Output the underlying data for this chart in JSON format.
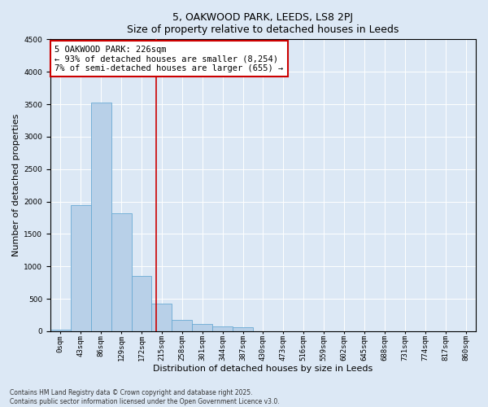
{
  "title_line1": "5, OAKWOOD PARK, LEEDS, LS8 2PJ",
  "title_line2": "Size of property relative to detached houses in Leeds",
  "xlabel": "Distribution of detached houses by size in Leeds",
  "ylabel": "Number of detached properties",
  "categories": [
    "0sqm",
    "43sqm",
    "86sqm",
    "129sqm",
    "172sqm",
    "215sqm",
    "258sqm",
    "301sqm",
    "344sqm",
    "387sqm",
    "430sqm",
    "473sqm",
    "516sqm",
    "559sqm",
    "602sqm",
    "645sqm",
    "688sqm",
    "731sqm",
    "774sqm",
    "817sqm",
    "860sqm"
  ],
  "values": [
    30,
    1950,
    3520,
    1820,
    850,
    430,
    170,
    110,
    80,
    65,
    0,
    0,
    0,
    0,
    0,
    0,
    0,
    0,
    0,
    0,
    0
  ],
  "bar_color": "#b8d0e8",
  "bar_edge_color": "#6aaad4",
  "vline_x": 4.74,
  "vline_color": "#cc0000",
  "annotation_text": "5 OAKWOOD PARK: 226sqm\n← 93% of detached houses are smaller (8,254)\n7% of semi-detached houses are larger (655) →",
  "annotation_box_color": "#ffffff",
  "annotation_box_edge": "#cc0000",
  "ylim": [
    0,
    4500
  ],
  "yticks": [
    0,
    500,
    1000,
    1500,
    2000,
    2500,
    3000,
    3500,
    4000,
    4500
  ],
  "background_color": "#dce8f5",
  "plot_bg_color": "#dce8f5",
  "footer_line1": "Contains HM Land Registry data © Crown copyright and database right 2025.",
  "footer_line2": "Contains public sector information licensed under the Open Government Licence v3.0.",
  "title_fontsize": 9,
  "subtitle_fontsize": 8.5,
  "tick_fontsize": 6.5,
  "label_fontsize": 8,
  "annotation_fontsize": 7.5
}
